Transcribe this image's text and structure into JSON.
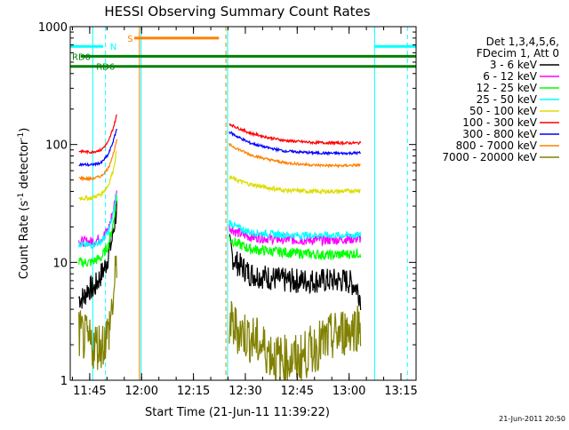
{
  "chart_data": {
    "type": "line",
    "title": "HESSI Observing Summary Count Rates",
    "xlabel": "Start Time (21-Jun-11 11:39:22)",
    "ylabel_parts": [
      "Count Rate (s",
      "-1",
      " detector",
      "-1",
      ")"
    ],
    "y_scale": "log",
    "ylim": [
      1,
      1000
    ],
    "xlim_minutes": [
      0,
      100
    ],
    "x_ticks": [
      {
        "value": 5.63,
        "label": "11:45"
      },
      {
        "value": 20.63,
        "label": "12:00"
      },
      {
        "value": 35.63,
        "label": "12:15"
      },
      {
        "value": 50.63,
        "label": "12:30"
      },
      {
        "value": 65.63,
        "label": "12:45"
      },
      {
        "value": 80.63,
        "label": "13:00"
      },
      {
        "value": 95.63,
        "label": "13:15"
      }
    ],
    "y_ticks": [
      {
        "value": 1,
        "label": "1"
      },
      {
        "value": 10,
        "label": "10"
      },
      {
        "value": 100,
        "label": "100"
      },
      {
        "value": 1000,
        "label": "1000"
      }
    ],
    "legend": {
      "position": "right",
      "header": [
        "Det 1,3,4,5,6,",
        "FDecim 1, Att 0"
      ]
    },
    "series": [
      {
        "name": "3 - 6 keV",
        "color": "#000000",
        "seg1": [
          [
            2.5,
            5
          ],
          [
            4,
            5
          ],
          [
            5,
            6
          ],
          [
            7,
            6
          ],
          [
            8,
            7
          ],
          [
            10,
            9
          ],
          [
            12,
            15
          ],
          [
            13.5,
            30
          ]
        ],
        "seg2": [
          [
            46,
            14
          ],
          [
            47,
            11
          ],
          [
            48,
            10
          ],
          [
            52,
            8
          ],
          [
            57,
            7.5
          ],
          [
            62,
            7
          ],
          [
            68,
            7
          ],
          [
            75,
            7
          ],
          [
            80,
            7
          ],
          [
            82,
            6.5
          ],
          [
            83,
            6
          ],
          [
            84,
            5
          ]
        ],
        "noise": 0.25
      },
      {
        "name": "6 - 12 keV",
        "color": "#ff00ff",
        "seg1": [
          [
            2.5,
            15
          ],
          [
            6,
            15
          ],
          [
            9,
            16
          ],
          [
            11,
            19
          ],
          [
            12.5,
            28
          ],
          [
            13.5,
            42
          ]
        ],
        "seg2": [
          [
            46,
            20
          ],
          [
            48,
            18
          ],
          [
            52,
            16.5
          ],
          [
            57,
            16
          ],
          [
            65,
            15.5
          ],
          [
            75,
            15.5
          ],
          [
            84,
            16
          ]
        ],
        "noise": 0.1
      },
      {
        "name": "12 - 25 keV",
        "color": "#00ff00",
        "seg1": [
          [
            2.5,
            10
          ],
          [
            6,
            10
          ],
          [
            9,
            11
          ],
          [
            11,
            14
          ],
          [
            12.5,
            22
          ],
          [
            13.5,
            38
          ]
        ],
        "seg2": [
          [
            46,
            16
          ],
          [
            48,
            14.5
          ],
          [
            52,
            13
          ],
          [
            57,
            12.5
          ],
          [
            65,
            12
          ],
          [
            75,
            11.5
          ],
          [
            84,
            12
          ]
        ],
        "noise": 0.1
      },
      {
        "name": "25 - 50 keV",
        "color": "#00ffff",
        "seg1": [
          [
            2.5,
            14
          ],
          [
            6,
            14
          ],
          [
            9,
            15
          ],
          [
            11,
            18
          ],
          [
            12.5,
            26
          ],
          [
            13.5,
            40
          ]
        ],
        "seg2": [
          [
            46,
            22
          ],
          [
            48,
            20
          ],
          [
            52,
            18
          ],
          [
            57,
            17.5
          ],
          [
            65,
            17
          ],
          [
            75,
            17
          ],
          [
            84,
            17
          ]
        ],
        "noise": 0.07
      },
      {
        "name": "50 - 100 keV",
        "color": "#dddd00",
        "seg1": [
          [
            2.5,
            35
          ],
          [
            6,
            35
          ],
          [
            9,
            38
          ],
          [
            11,
            45
          ],
          [
            12.5,
            62
          ],
          [
            13.5,
            90
          ]
        ],
        "seg2": [
          [
            46,
            53
          ],
          [
            48,
            50
          ],
          [
            52,
            46
          ],
          [
            57,
            43
          ],
          [
            62,
            41
          ],
          [
            70,
            40
          ],
          [
            78,
            40
          ],
          [
            84,
            41
          ]
        ],
        "noise": 0.04
      },
      {
        "name": "100 - 300 keV",
        "color": "#ff0000",
        "seg1": [
          [
            2.5,
            88
          ],
          [
            6,
            86
          ],
          [
            9,
            90
          ],
          [
            11,
            105
          ],
          [
            12.5,
            140
          ],
          [
            13.5,
            180
          ]
        ],
        "seg2": [
          [
            46,
            150
          ],
          [
            48,
            140
          ],
          [
            52,
            125
          ],
          [
            57,
            115
          ],
          [
            62,
            108
          ],
          [
            70,
            104
          ],
          [
            78,
            103
          ],
          [
            84,
            103
          ]
        ],
        "noise": 0.025
      },
      {
        "name": "300 - 800 keV",
        "color": "#0000ff",
        "seg1": [
          [
            2.5,
            68
          ],
          [
            6,
            67
          ],
          [
            9,
            70
          ],
          [
            11,
            82
          ],
          [
            12.5,
            108
          ],
          [
            13.5,
            138
          ]
        ],
        "seg2": [
          [
            46,
            128
          ],
          [
            48,
            118
          ],
          [
            52,
            103
          ],
          [
            57,
            94
          ],
          [
            62,
            88
          ],
          [
            70,
            85
          ],
          [
            78,
            84
          ],
          [
            84,
            85
          ]
        ],
        "noise": 0.025
      },
      {
        "name": "800 - 7000 keV",
        "color": "#ff8000",
        "seg1": [
          [
            2.5,
            52
          ],
          [
            6,
            51
          ],
          [
            9,
            54
          ],
          [
            11,
            63
          ],
          [
            12.5,
            84
          ],
          [
            13.5,
            110
          ]
        ],
        "seg2": [
          [
            46,
            100
          ],
          [
            48,
            93
          ],
          [
            52,
            82
          ],
          [
            57,
            75
          ],
          [
            62,
            70
          ],
          [
            70,
            67
          ],
          [
            78,
            66
          ],
          [
            84,
            67
          ]
        ],
        "noise": 0.025
      },
      {
        "name": "7000 - 20000 keV",
        "color": "#808000",
        "seg1": [
          [
            2.5,
            2.5
          ],
          [
            6,
            2
          ],
          [
            9,
            2
          ],
          [
            11,
            2.5
          ],
          [
            12.5,
            5
          ],
          [
            13.5,
            10
          ]
        ],
        "seg2": [
          [
            46,
            3
          ],
          [
            50,
            2.5
          ],
          [
            55,
            2
          ],
          [
            60,
            1.5
          ],
          [
            66,
            1.5
          ],
          [
            72,
            2
          ],
          [
            78,
            2.5
          ],
          [
            84,
            3
          ]
        ],
        "noise": 0.5
      }
    ],
    "state_bars": [
      {
        "label": "N",
        "color": "#00ffff",
        "y": 680,
        "segments": [
          [
            0,
            9.5
          ],
          [
            88,
            100
          ]
        ],
        "label_x": 11
      },
      {
        "label": "S",
        "color": "#ff8000",
        "y": 800,
        "segments": [
          [
            18.5,
            43
          ]
        ],
        "label_x": 16
      },
      {
        "label": "RD0",
        "color": "#008000",
        "y": 560,
        "segments": [
          [
            3,
            100
          ]
        ],
        "label_x": 0
      },
      {
        "label": "RD6",
        "color": "#008000",
        "y": 460,
        "segments": [
          [
            0,
            100
          ]
        ],
        "label_x": 7
      }
    ],
    "vlines": [
      {
        "x": 0,
        "color": "#00ffff",
        "style": "solid"
      },
      {
        "x": 6.5,
        "color": "#00ffff",
        "style": "solid"
      },
      {
        "x": 10.2,
        "color": "#00ffff",
        "style": "dashed"
      },
      {
        "x": 20.5,
        "color": "#00ffff",
        "style": "solid"
      },
      {
        "x": 20.0,
        "color": "#ff8000",
        "style": "solid"
      },
      {
        "x": 45.5,
        "color": "#00ffff",
        "style": "solid"
      },
      {
        "x": 45.0,
        "color": "#ff8000",
        "style": "dashed"
      },
      {
        "x": 88.0,
        "color": "#00ffff",
        "style": "solid"
      },
      {
        "x": 97.5,
        "color": "#00ffff",
        "style": "dashed"
      }
    ]
  },
  "footer": {
    "timestamp": "21-Jun-2011 20:50"
  }
}
